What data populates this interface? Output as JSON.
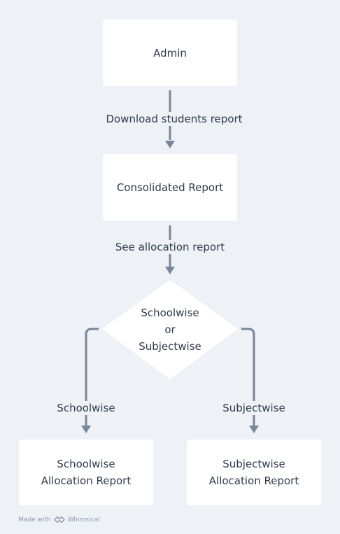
{
  "nodes": {
    "admin": "Admin",
    "consolidated": "Consolidated Report",
    "decision": [
      "Schoolwise",
      "or",
      "Subjectwise"
    ],
    "schoolwise_report": [
      "Schoolwise",
      "Allocation Report"
    ],
    "subjectwise_report": [
      "Subjectwise",
      "Allocation Report"
    ]
  },
  "edges": {
    "download": "Download students report",
    "see_allocation": "See allocation report",
    "schoolwise": "Schoolwise",
    "subjectwise": "Subjectwise"
  },
  "watermark": {
    "prefix": "Made with",
    "brand": "Whimsical"
  },
  "colors": {
    "background": "#eef2f6",
    "node": "#ffffff",
    "connector": "#7a8798",
    "text": "#2f3b4a"
  }
}
